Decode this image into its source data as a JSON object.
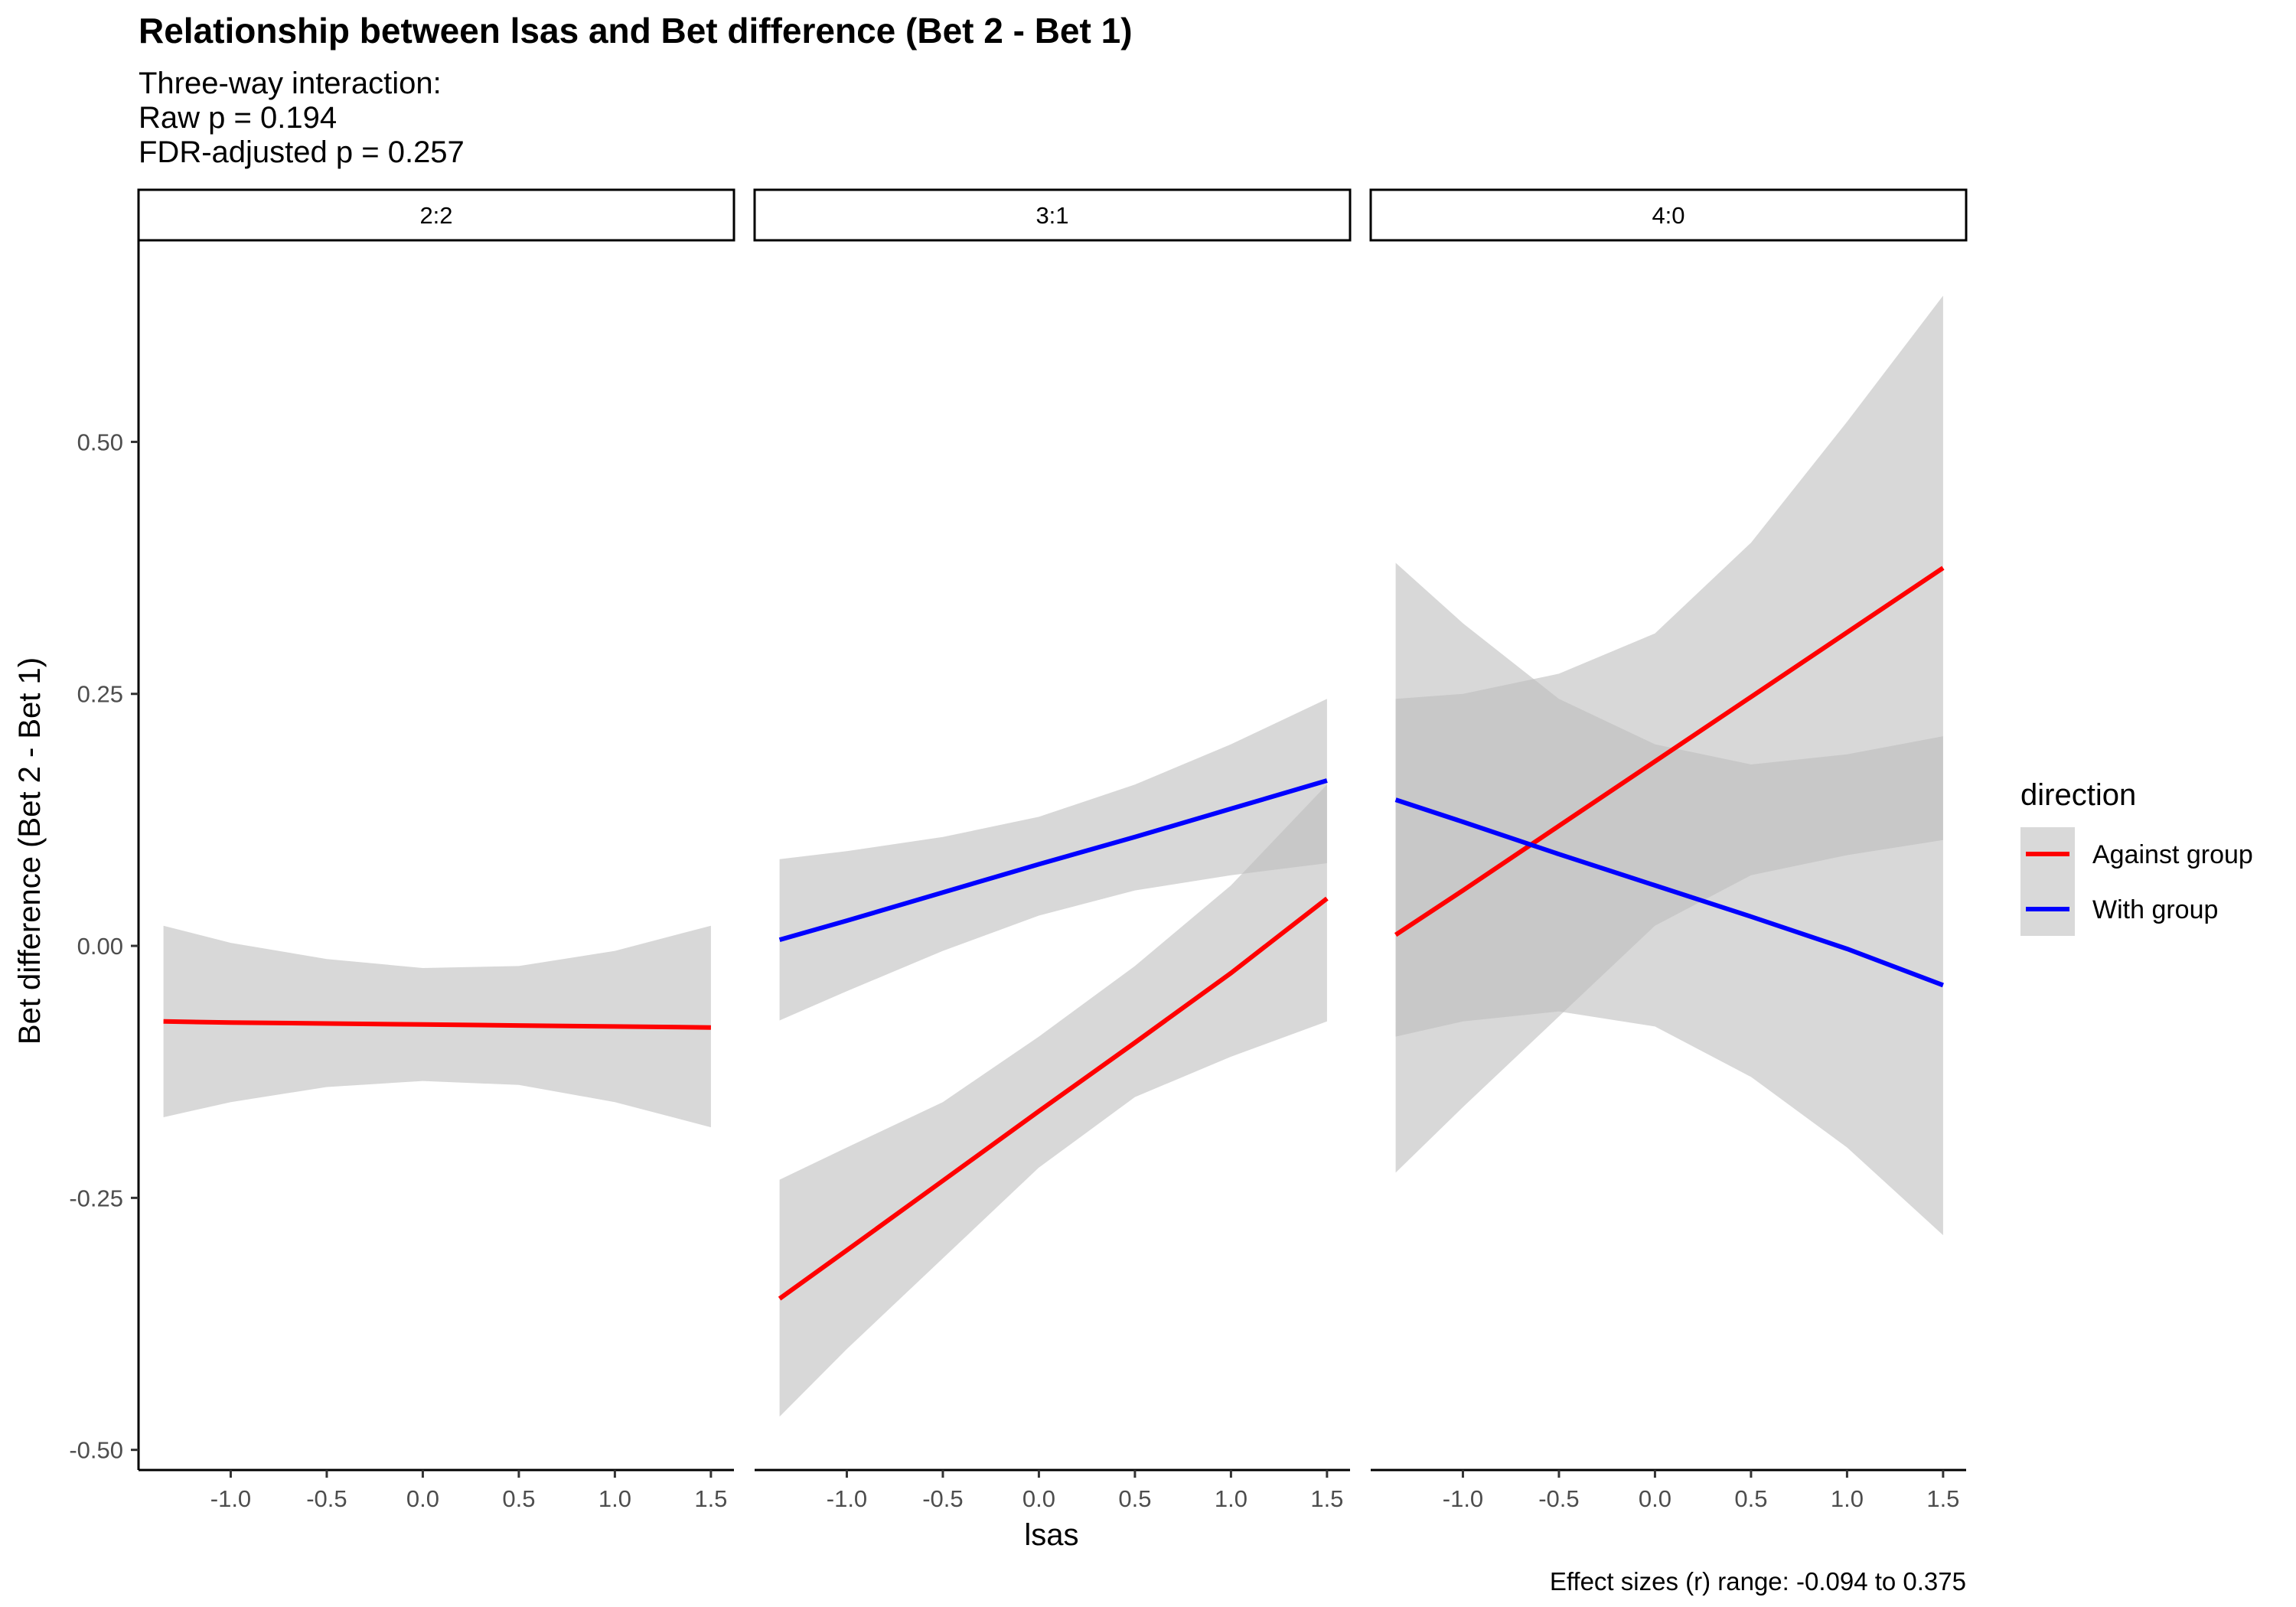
{
  "chart_data": {
    "type": "line",
    "title": "Relationship between lsas and Bet difference (Bet 2 - Bet 1)",
    "subtitle": [
      "Three-way interaction:",
      "Raw p = 0.194",
      "FDR-adjusted p = 0.257"
    ],
    "xlabel": "lsas",
    "ylabel": "Bet difference (Bet 2 - Bet 1)",
    "caption": "Effect sizes (r) range: -0.094 to 0.375",
    "xlim": [
      -1.48,
      1.62
    ],
    "ylim": [
      -0.52,
      0.7
    ],
    "x_ticks": [
      -1.0,
      -0.5,
      0.0,
      0.5,
      1.0,
      1.5
    ],
    "x_tick_labels": [
      "-1.0",
      "-0.5",
      "0.0",
      "0.5",
      "1.0",
      "1.5"
    ],
    "y_ticks": [
      -0.5,
      -0.25,
      0.0,
      0.25,
      0.5
    ],
    "y_tick_labels": [
      "-0.50",
      "-0.25",
      "0.00",
      "0.25",
      "0.50"
    ],
    "grid": false,
    "legend": {
      "title": "direction",
      "placement": "right",
      "entries": [
        {
          "label": "Against group",
          "color": "#ff0000"
        },
        {
          "label": "With group",
          "color": "#0000ff"
        }
      ]
    },
    "ribbon_color": "#bebebe",
    "facets": [
      {
        "label": "2:2",
        "series": [
          {
            "name": "Against group",
            "color": "#ff0000",
            "x": [
              -1.35,
              -1.0,
              -0.5,
              0.0,
              0.5,
              1.0,
              1.5
            ],
            "y": [
              -0.075,
              -0.076,
              -0.077,
              -0.078,
              -0.079,
              -0.08,
              -0.081
            ],
            "lower": [
              -0.17,
              -0.155,
              -0.14,
              -0.134,
              -0.138,
              -0.155,
              -0.18
            ],
            "upper": [
              0.02,
              0.003,
              -0.013,
              -0.022,
              -0.02,
              -0.005,
              0.02
            ]
          }
        ]
      },
      {
        "label": "3:1",
        "series": [
          {
            "name": "Against group",
            "color": "#ff0000",
            "x": [
              -1.35,
              -1.0,
              -0.5,
              0.0,
              0.5,
              1.0,
              1.5
            ],
            "y": [
              -0.35,
              -0.302,
              -0.233,
              -0.164,
              -0.096,
              -0.027,
              0.047
            ],
            "lower": [
              -0.467,
              -0.4,
              -0.31,
              -0.22,
              -0.15,
              -0.11,
              -0.075
            ],
            "upper": [
              -0.232,
              -0.2,
              -0.155,
              -0.09,
              -0.02,
              0.06,
              0.16
            ]
          },
          {
            "name": "With group",
            "color": "#0000ff",
            "x": [
              -1.35,
              -1.0,
              -0.5,
              0.0,
              0.5,
              1.0,
              1.5
            ],
            "y": [
              0.006,
              0.025,
              0.053,
              0.081,
              0.108,
              0.136,
              0.164
            ],
            "lower": [
              -0.074,
              -0.045,
              -0.005,
              0.03,
              0.055,
              0.07,
              0.082
            ],
            "upper": [
              0.086,
              0.094,
              0.108,
              0.128,
              0.16,
              0.2,
              0.245
            ]
          }
        ]
      },
      {
        "label": "4:0",
        "series": [
          {
            "name": "Against group",
            "color": "#ff0000",
            "x": [
              -1.35,
              -1.0,
              -0.5,
              0.0,
              0.5,
              1.0,
              1.5
            ],
            "y": [
              0.011,
              0.055,
              0.119,
              0.183,
              0.247,
              0.311,
              0.375
            ],
            "lower": [
              -0.225,
              -0.16,
              -0.07,
              0.02,
              0.07,
              0.09,
              0.105
            ],
            "upper": [
              0.245,
              0.25,
              0.27,
              0.31,
              0.4,
              0.52,
              0.645
            ]
          },
          {
            "name": "With group",
            "color": "#0000ff",
            "x": [
              -1.35,
              -1.0,
              -0.5,
              0.0,
              0.5,
              1.0,
              1.5
            ],
            "y": [
              0.145,
              0.123,
              0.091,
              0.06,
              0.029,
              -0.003,
              -0.039
            ],
            "lower": [
              -0.09,
              -0.075,
              -0.065,
              -0.08,
              -0.13,
              -0.2,
              -0.287
            ],
            "upper": [
              0.38,
              0.32,
              0.245,
              0.2,
              0.18,
              0.19,
              0.208
            ]
          }
        ]
      }
    ]
  }
}
